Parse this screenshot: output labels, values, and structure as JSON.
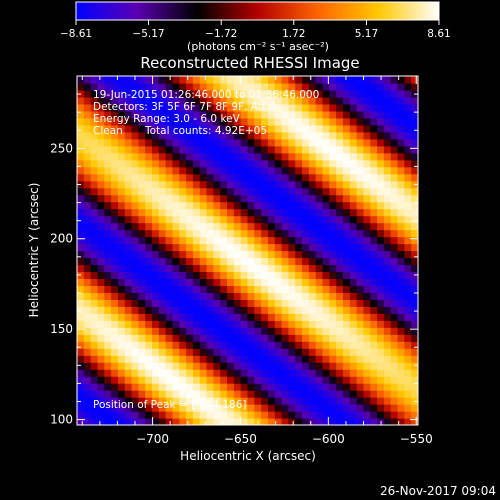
{
  "chart_data": {
    "type": "heatmap",
    "title": "Reconstructed RHESSI Image",
    "xlabel": "Heliocentric X (arcsec)",
    "ylabel": "Heliocentric Y (arcsec)",
    "xlim": [
      -743,
      -549
    ],
    "ylim": [
      97,
      290
    ],
    "x_ticks": [
      -700,
      -650,
      -600,
      -550
    ],
    "y_ticks": [
      100,
      150,
      200,
      250
    ],
    "colorbar": {
      "ticks": [
        "-8.61",
        "-5.17",
        "-1.72",
        "1.72",
        "5.17",
        "8.61"
      ],
      "vmin": -8.61,
      "vmax": 8.61,
      "units": "(photons cm⁻² s⁻¹ asec⁻²)",
      "colors": [
        "#0000ff",
        "#5a00b4",
        "#000000",
        "#b40000",
        "#ff6400",
        "#ffc800",
        "#ffffff"
      ]
    },
    "peak": {
      "x": -644,
      "y": 186
    },
    "annotations": {
      "time_range": "19-Jun-2015 01:26:46.000 to 01:36:46.000",
      "detectors": "Detectors: 3F 5F 6F 7F 8F 9F, Att 0",
      "energy": "Energy Range: 3.0 - 6.0 keV",
      "clean_label": "Clean",
      "total_counts": "Total counts: 4.92E+05",
      "peak_label": "Position of Peak = [-644,186]"
    }
  },
  "footer": {
    "date": "26-Nov-2017 09:04"
  }
}
